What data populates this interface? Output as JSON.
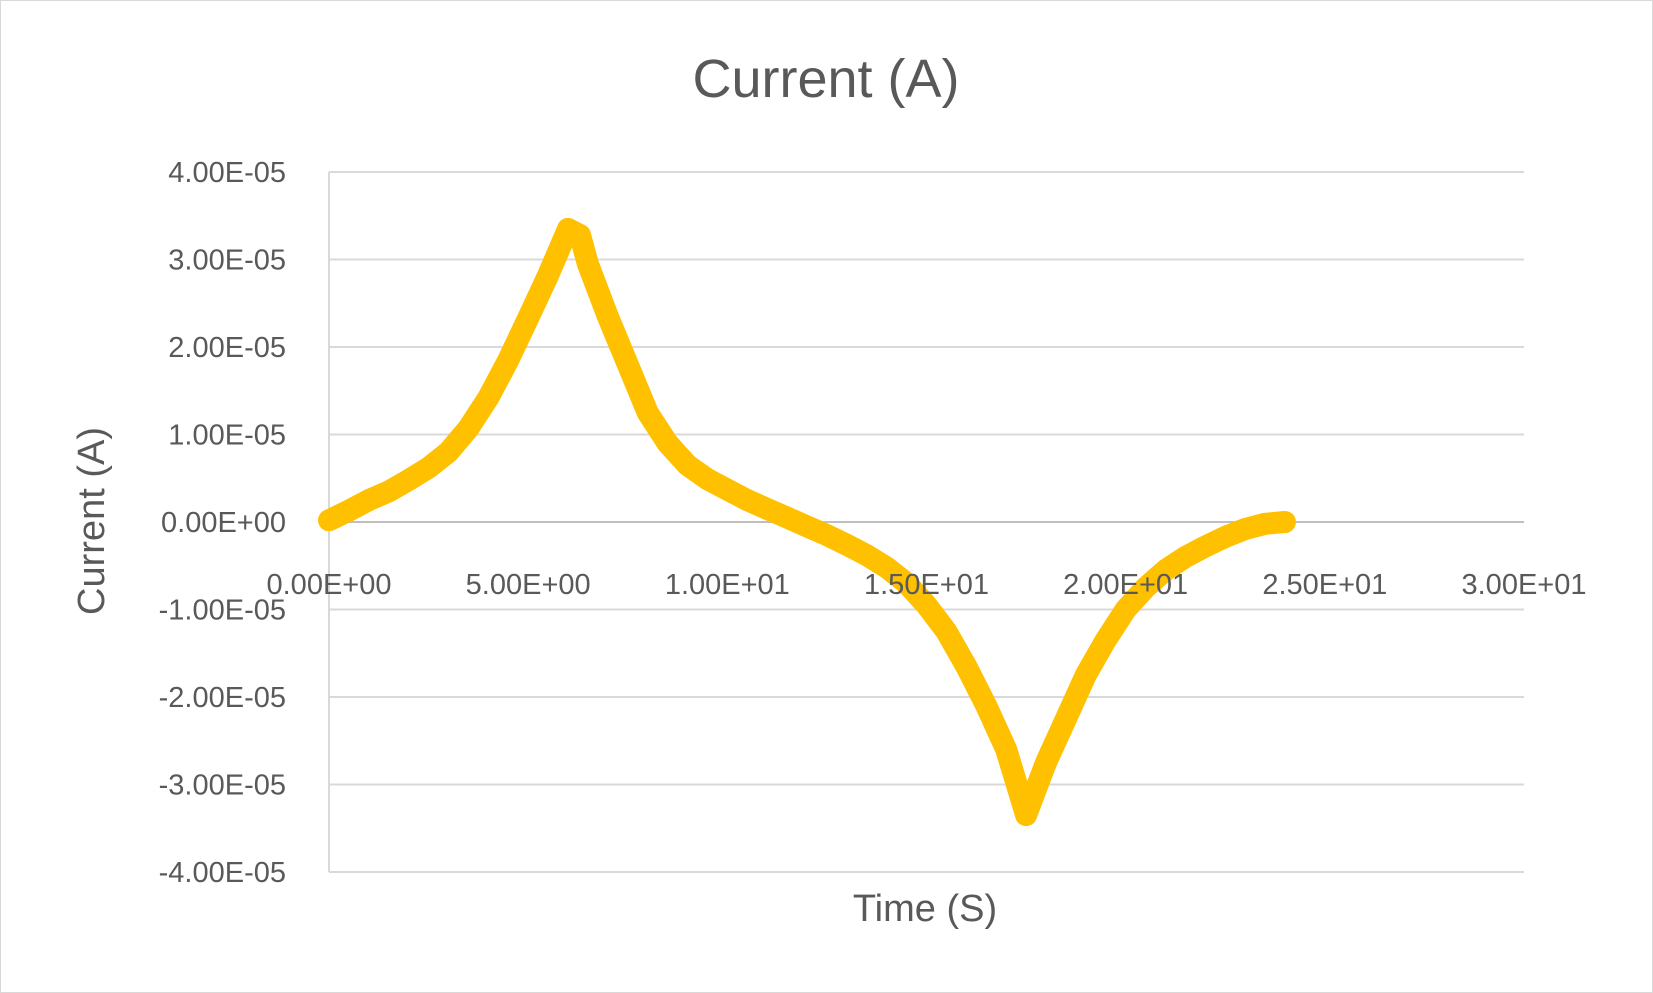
{
  "chart_data": {
    "type": "line",
    "title": "Current (A)",
    "xlabel": "Time (S)",
    "ylabel": "Current (A)",
    "xlim": [
      0,
      30
    ],
    "ylim": [
      -4e-05,
      4e-05
    ],
    "x_ticks": [
      "0.00E+00",
      "5.00E+00",
      "1.00E+01",
      "1.50E+01",
      "2.00E+01",
      "2.50E+01",
      "3.00E+01"
    ],
    "x_tick_values": [
      0,
      5,
      10,
      15,
      20,
      25,
      30
    ],
    "y_ticks": [
      "4.00E-05",
      "3.00E-05",
      "2.00E-05",
      "1.00E-05",
      "0.00E+00",
      "-1.00E-05",
      "-2.00E-05",
      "-3.00E-05",
      "-4.00E-05"
    ],
    "y_tick_values": [
      4e-05,
      3e-05,
      2e-05,
      1e-05,
      0,
      -1e-05,
      -2e-05,
      -3e-05,
      -4e-05
    ],
    "grid": true,
    "legend": "none",
    "line_color": "#FFC000",
    "gridline_color": "#d9d9d9",
    "text_color": "#595959",
    "series": [
      {
        "x": [
          0.0,
          0.5,
          1.0,
          1.5,
          2.0,
          2.5,
          3.0,
          3.5,
          4.0,
          4.5,
          5.0,
          5.5,
          6.0,
          6.3,
          6.5,
          7.0,
          7.5,
          8.0,
          8.5,
          9.0,
          9.5,
          10.0,
          10.5,
          11.0,
          11.5,
          12.0,
          12.5,
          13.0,
          13.5,
          14.0,
          14.5,
          15.0,
          15.5,
          16.0,
          16.5,
          17.0,
          17.5,
          18.0,
          18.5,
          19.0,
          19.5,
          20.0,
          20.5,
          21.0,
          21.5,
          22.0,
          22.5,
          23.0,
          23.5,
          24.0
        ],
        "y": [
          2e-07,
          1.3e-06,
          2.5e-06,
          3.5e-06,
          4.8e-06,
          6.2e-06,
          8e-06,
          1.07e-05,
          1.42e-05,
          1.85e-05,
          2.33e-05,
          2.82e-05,
          3.35e-05,
          3.28e-05,
          2.95e-05,
          2.35e-05,
          1.8e-05,
          1.25e-05,
          9e-06,
          6.5e-06,
          4.9e-06,
          3.7e-06,
          2.5e-06,
          1.5e-06,
          5e-07,
          -5e-07,
          -1.5e-06,
          -2.6e-06,
          -3.8e-06,
          -5.2e-06,
          -7e-06,
          -9.5e-06,
          -1.25e-05,
          -1.65e-05,
          -2.1e-05,
          -2.6e-05,
          -3.35e-05,
          -2.75e-05,
          -2.25e-05,
          -1.75e-05,
          -1.35e-05,
          -1e-05,
          -7.5e-06,
          -5.5e-06,
          -4e-06,
          -2.8e-06,
          -1.7e-06,
          -8e-07,
          -2e-07,
          0.0
        ]
      }
    ]
  }
}
